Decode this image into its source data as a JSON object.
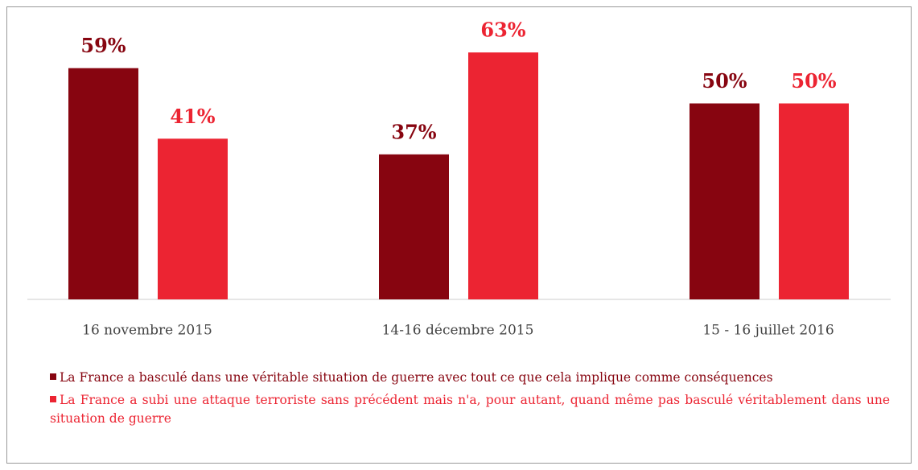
{
  "chart_data": {
    "type": "bar",
    "categories": [
      "16 novembre 2015",
      "14-16 décembre 2015",
      "15 - 16 juillet 2016"
    ],
    "series": [
      {
        "name": "La France a basculé dans une véritable situation de guerre avec tout ce que cela implique comme conséquences",
        "color": "#870510",
        "values": [
          59,
          37,
          50
        ],
        "value_labels": [
          "59%",
          "37%",
          "50%"
        ]
      },
      {
        "name": "La France a subi une attaque terroriste sans précédent mais n'a, pour autant, quand même pas basculé véritablement dans une situation de guerre",
        "color": "#ec2432",
        "values": [
          41,
          63,
          50
        ],
        "value_labels": [
          "41%",
          "63%",
          "50%"
        ]
      }
    ]
  }
}
